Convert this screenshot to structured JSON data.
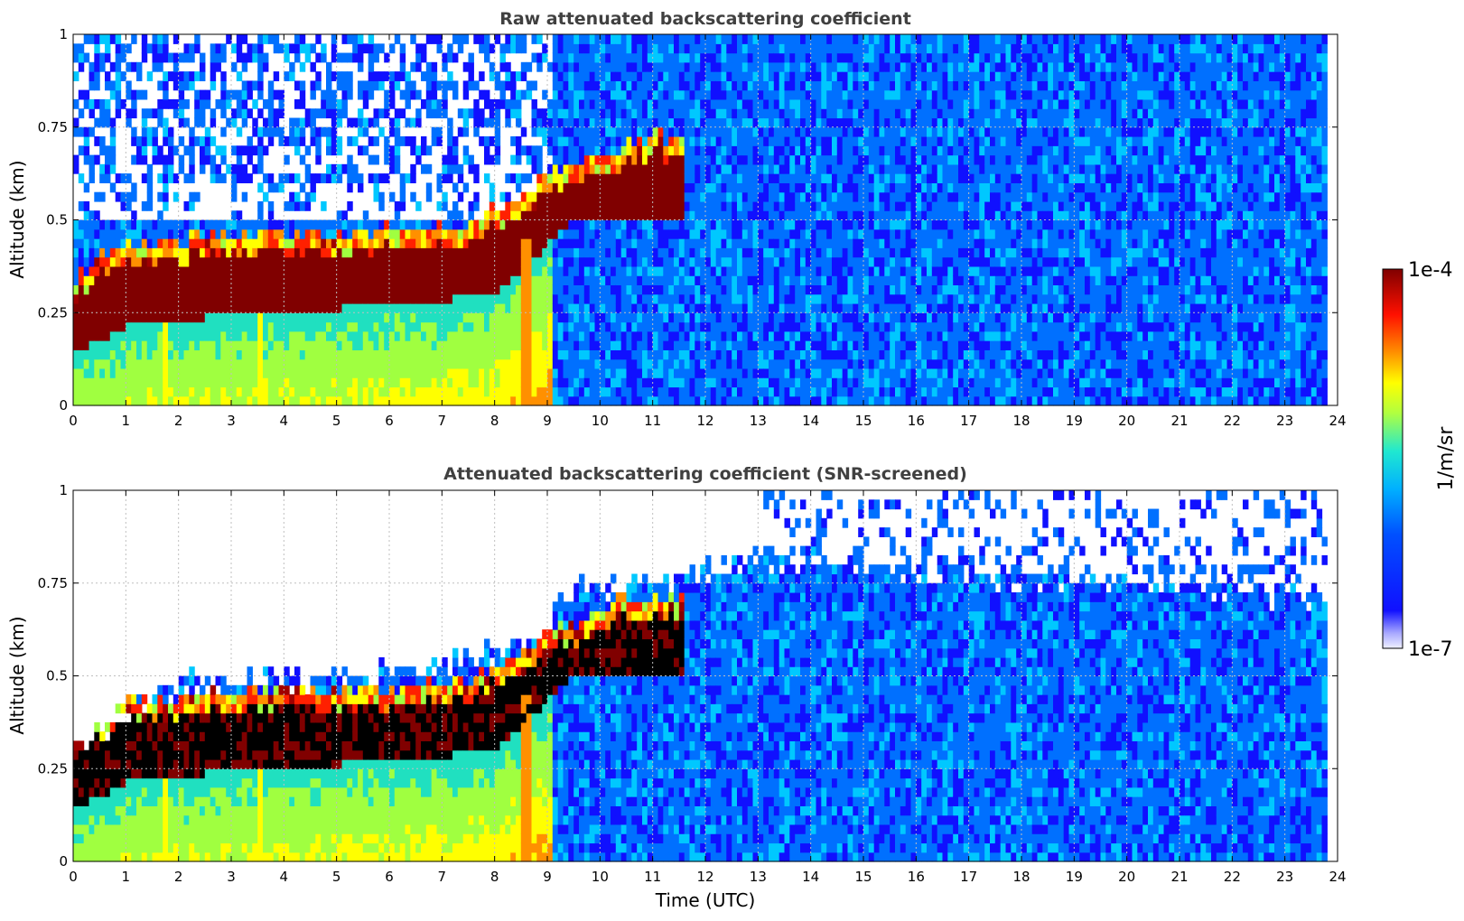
{
  "chart_data": [
    {
      "type": "heatmap",
      "title": "Raw attenuated backscattering coefficient",
      "xlabel": "",
      "ylabel": "Altitude (km)",
      "xlim": [
        0,
        24
      ],
      "ylim": [
        0,
        1
      ],
      "xticks": [
        "0",
        "1",
        "2",
        "3",
        "4",
        "5",
        "6",
        "7",
        "8",
        "9",
        "10",
        "11",
        "12",
        "13",
        "14",
        "15",
        "16",
        "17",
        "18",
        "19",
        "20",
        "21",
        "22",
        "23",
        "24"
      ],
      "yticks": [
        "0",
        "0.25",
        "0.5",
        "0.75",
        "1"
      ],
      "grid": true,
      "data_end_time": 23.8,
      "layer_top_km": [
        [
          0,
          0.29
        ],
        [
          0.7,
          0.36
        ],
        [
          2,
          0.39
        ],
        [
          4,
          0.4
        ],
        [
          6,
          0.41
        ],
        [
          7.5,
          0.43
        ],
        [
          8.4,
          0.5
        ],
        [
          9,
          0.56
        ],
        [
          10,
          0.62
        ],
        [
          11,
          0.66
        ]
      ],
      "layer_bottom_km": [
        [
          0,
          0.13
        ],
        [
          1,
          0.2
        ],
        [
          2,
          0.22
        ],
        [
          4,
          0.24
        ],
        [
          5,
          0.25
        ],
        [
          7,
          0.27
        ],
        [
          8,
          0.3
        ],
        [
          8.8,
          0.4
        ],
        [
          9.5,
          0.5
        ]
      ],
      "aerosol_top_km_after_13h": 1.0,
      "screened": false
    },
    {
      "type": "heatmap",
      "title": "Attenuated backscattering coefficient (SNR-screened)",
      "xlabel": "Time (UTC)",
      "ylabel": "Altitude (km)",
      "xlim": [
        0,
        24
      ],
      "ylim": [
        0,
        1
      ],
      "xticks": [
        "0",
        "1",
        "2",
        "3",
        "4",
        "5",
        "6",
        "7",
        "8",
        "9",
        "10",
        "11",
        "12",
        "13",
        "14",
        "15",
        "16",
        "17",
        "18",
        "19",
        "20",
        "21",
        "22",
        "23",
        "24"
      ],
      "yticks": [
        "0",
        "0.25",
        "0.5",
        "0.75",
        "1"
      ],
      "grid": true,
      "data_end_time": 23.8,
      "screened": true,
      "screen_top_km": [
        [
          0,
          0.3
        ],
        [
          1,
          0.4
        ],
        [
          2,
          0.46
        ],
        [
          4,
          0.48
        ],
        [
          6,
          0.5
        ],
        [
          7.5,
          0.52
        ],
        [
          8.5,
          0.6
        ],
        [
          9.5,
          0.72
        ],
        [
          13,
          0.8
        ],
        [
          18,
          0.75
        ],
        [
          21,
          0.72
        ],
        [
          23.8,
          0.7
        ]
      ]
    }
  ],
  "colorbar": {
    "label": "1/m/sr",
    "max_label": "1e-4",
    "min_label": "1e-7",
    "colors": [
      "#e8e8f8",
      "#1010ff",
      "#0070ff",
      "#00c8ff",
      "#20e0c0",
      "#a0ff40",
      "#ffff00",
      "#ff9000",
      "#ff2000",
      "#a00000",
      "#800000"
    ]
  }
}
